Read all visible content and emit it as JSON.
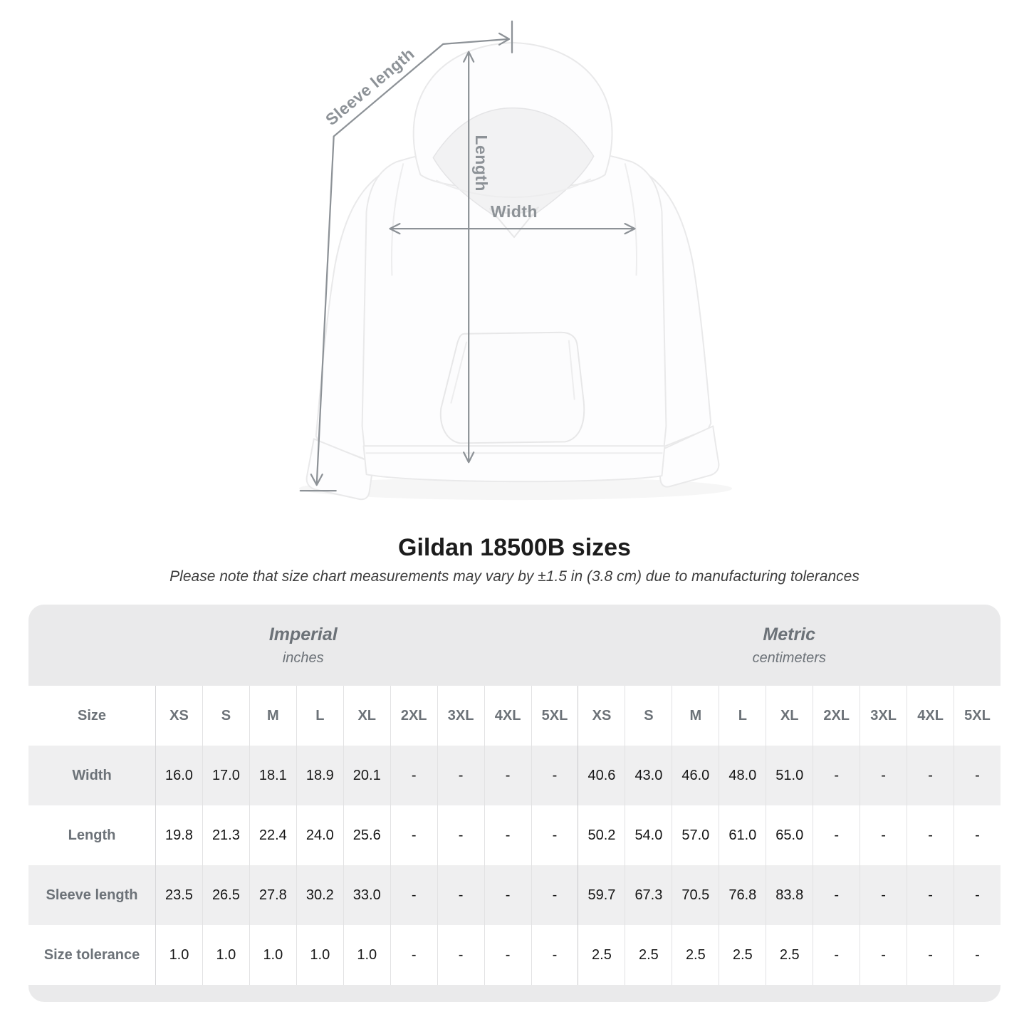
{
  "figure": {
    "labels": {
      "sleeve": "Sleeve length",
      "length": "Length",
      "width": "Width"
    },
    "annotation_color": "#8d9297"
  },
  "header": {
    "title": "Gildan 18500B sizes",
    "subtitle": "Please note that size chart measurements may vary by ±1.5 in (3.8 cm) due to manufacturing tolerances"
  },
  "chart_data": {
    "type": "table",
    "title": "Gildan 18500B sizes",
    "note": "Please note that size chart measurements may vary by ±1.5 in (3.8 cm) due to manufacturing tolerances",
    "corner_label": "Size",
    "unit_groups": [
      {
        "label": "Imperial",
        "unit": "inches"
      },
      {
        "label": "Metric",
        "unit": "centimeters"
      }
    ],
    "sizes": [
      "XS",
      "S",
      "M",
      "L",
      "XL",
      "2XL",
      "3XL",
      "4XL",
      "5XL"
    ],
    "empty_marker": "-",
    "rows": [
      {
        "label": "Width",
        "imperial": [
          "16.0",
          "17.0",
          "18.1",
          "18.9",
          "20.1",
          "-",
          "-",
          "-",
          "-"
        ],
        "metric": [
          "40.6",
          "43.0",
          "46.0",
          "48.0",
          "51.0",
          "-",
          "-",
          "-",
          "-"
        ]
      },
      {
        "label": "Length",
        "imperial": [
          "19.8",
          "21.3",
          "22.4",
          "24.0",
          "25.6",
          "-",
          "-",
          "-",
          "-"
        ],
        "metric": [
          "50.2",
          "54.0",
          "57.0",
          "61.0",
          "65.0",
          "-",
          "-",
          "-",
          "-"
        ]
      },
      {
        "label": "Sleeve length",
        "imperial": [
          "23.5",
          "26.5",
          "27.8",
          "30.2",
          "33.0",
          "-",
          "-",
          "-",
          "-"
        ],
        "metric": [
          "59.7",
          "67.3",
          "70.5",
          "76.8",
          "83.8",
          "-",
          "-",
          "-",
          "-"
        ]
      },
      {
        "label": "Size tolerance",
        "imperial": [
          "1.0",
          "1.0",
          "1.0",
          "1.0",
          "1.0",
          "-",
          "-",
          "-",
          "-"
        ],
        "metric": [
          "2.5",
          "2.5",
          "2.5",
          "2.5",
          "2.5",
          "-",
          "-",
          "-",
          "-"
        ]
      }
    ]
  },
  "colors": {
    "annotation": "#8d9297",
    "table-label": "#6c7278",
    "value": "#161616",
    "header-bg": "#eaeaeb",
    "row-alt": "#efeff0",
    "divider": "#e2e2e3",
    "divider-strong": "#c9c9cb",
    "title": "#1c1c1c",
    "subtitle": "#3d3d3d"
  }
}
